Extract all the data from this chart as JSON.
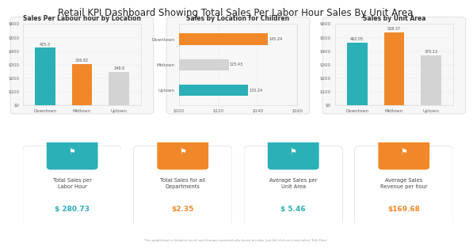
{
  "title": "Retail KPI Dashboard Showing Total Sales Per Labor Hour Sales By Unit Area",
  "chart1": {
    "title": "Sales Per Labour hour by Location",
    "categories": [
      "Downtown",
      "Midtown",
      "Uptown"
    ],
    "values": [
      425.3,
      306.82,
      248.8
    ],
    "colors": [
      "#2ab0b6",
      "#f0882a",
      "#d3d3d3"
    ],
    "ylim": [
      0,
      600
    ],
    "yticks": [
      0,
      100,
      200,
      300,
      400,
      500,
      600
    ],
    "ytick_labels": [
      "$0",
      "$100",
      "$200",
      "$300",
      "$400",
      "$500",
      "$600"
    ]
  },
  "chart2": {
    "title": "Sales by Location for Children",
    "categories": [
      "Uptown",
      "Midtown",
      "Downtown"
    ],
    "values": [
      135.24,
      125.43,
      145.24
    ],
    "colors": [
      "#2ab0b6",
      "#d3d3d3",
      "#f0882a"
    ],
    "xlim": [
      100,
      160
    ],
    "xticks": [
      100,
      120,
      140,
      160
    ],
    "xtick_labels": [
      "$100",
      "$120",
      "$140",
      "$160"
    ]
  },
  "chart3": {
    "title": "Sales by Unit Area",
    "categories": [
      "Downtown",
      "Midtown",
      "Uptown"
    ],
    "values": [
      462.05,
      538.37,
      370.13
    ],
    "colors": [
      "#2ab0b6",
      "#f0882a",
      "#d3d3d3"
    ],
    "ylim": [
      0,
      600
    ],
    "yticks": [
      0,
      100,
      200,
      300,
      400,
      500,
      600
    ],
    "ytick_labels": [
      "$0",
      "$100",
      "$200",
      "$300",
      "$400",
      "$500",
      "$600"
    ]
  },
  "kpis": [
    {
      "label": "Total Sales per\nLabor Hour",
      "value": "$ 280.73",
      "icon_color": "#2ab0b6",
      "value_color": "#2ab0b6"
    },
    {
      "label": "Total Sales for all\nDepartments",
      "value": "$2.35",
      "icon_color": "#f0882a",
      "value_color": "#f0882a"
    },
    {
      "label": "Average Sales per\nUnit Area",
      "value": "$ 5.46",
      "icon_color": "#2ab0b6",
      "value_color": "#2ab0b6"
    },
    {
      "label": "Average Sales\nRevenue per hour",
      "value": "$169.68",
      "icon_color": "#f0882a",
      "value_color": "#f0882a"
    }
  ],
  "footer": "This graph/chart is linked to excel, and changes automatically based on data. Just left click on it and select 'Edit Data'",
  "bg_color": "#ffffff",
  "chart_bg": "#f9f9f9",
  "border_color": "#dddddd",
  "title_fontsize": 8.5,
  "chart_title_fontsize": 5.5,
  "tick_fontsize": 4.0,
  "kpi_label_fontsize": 4.8,
  "kpi_value_fontsize": 6.5
}
